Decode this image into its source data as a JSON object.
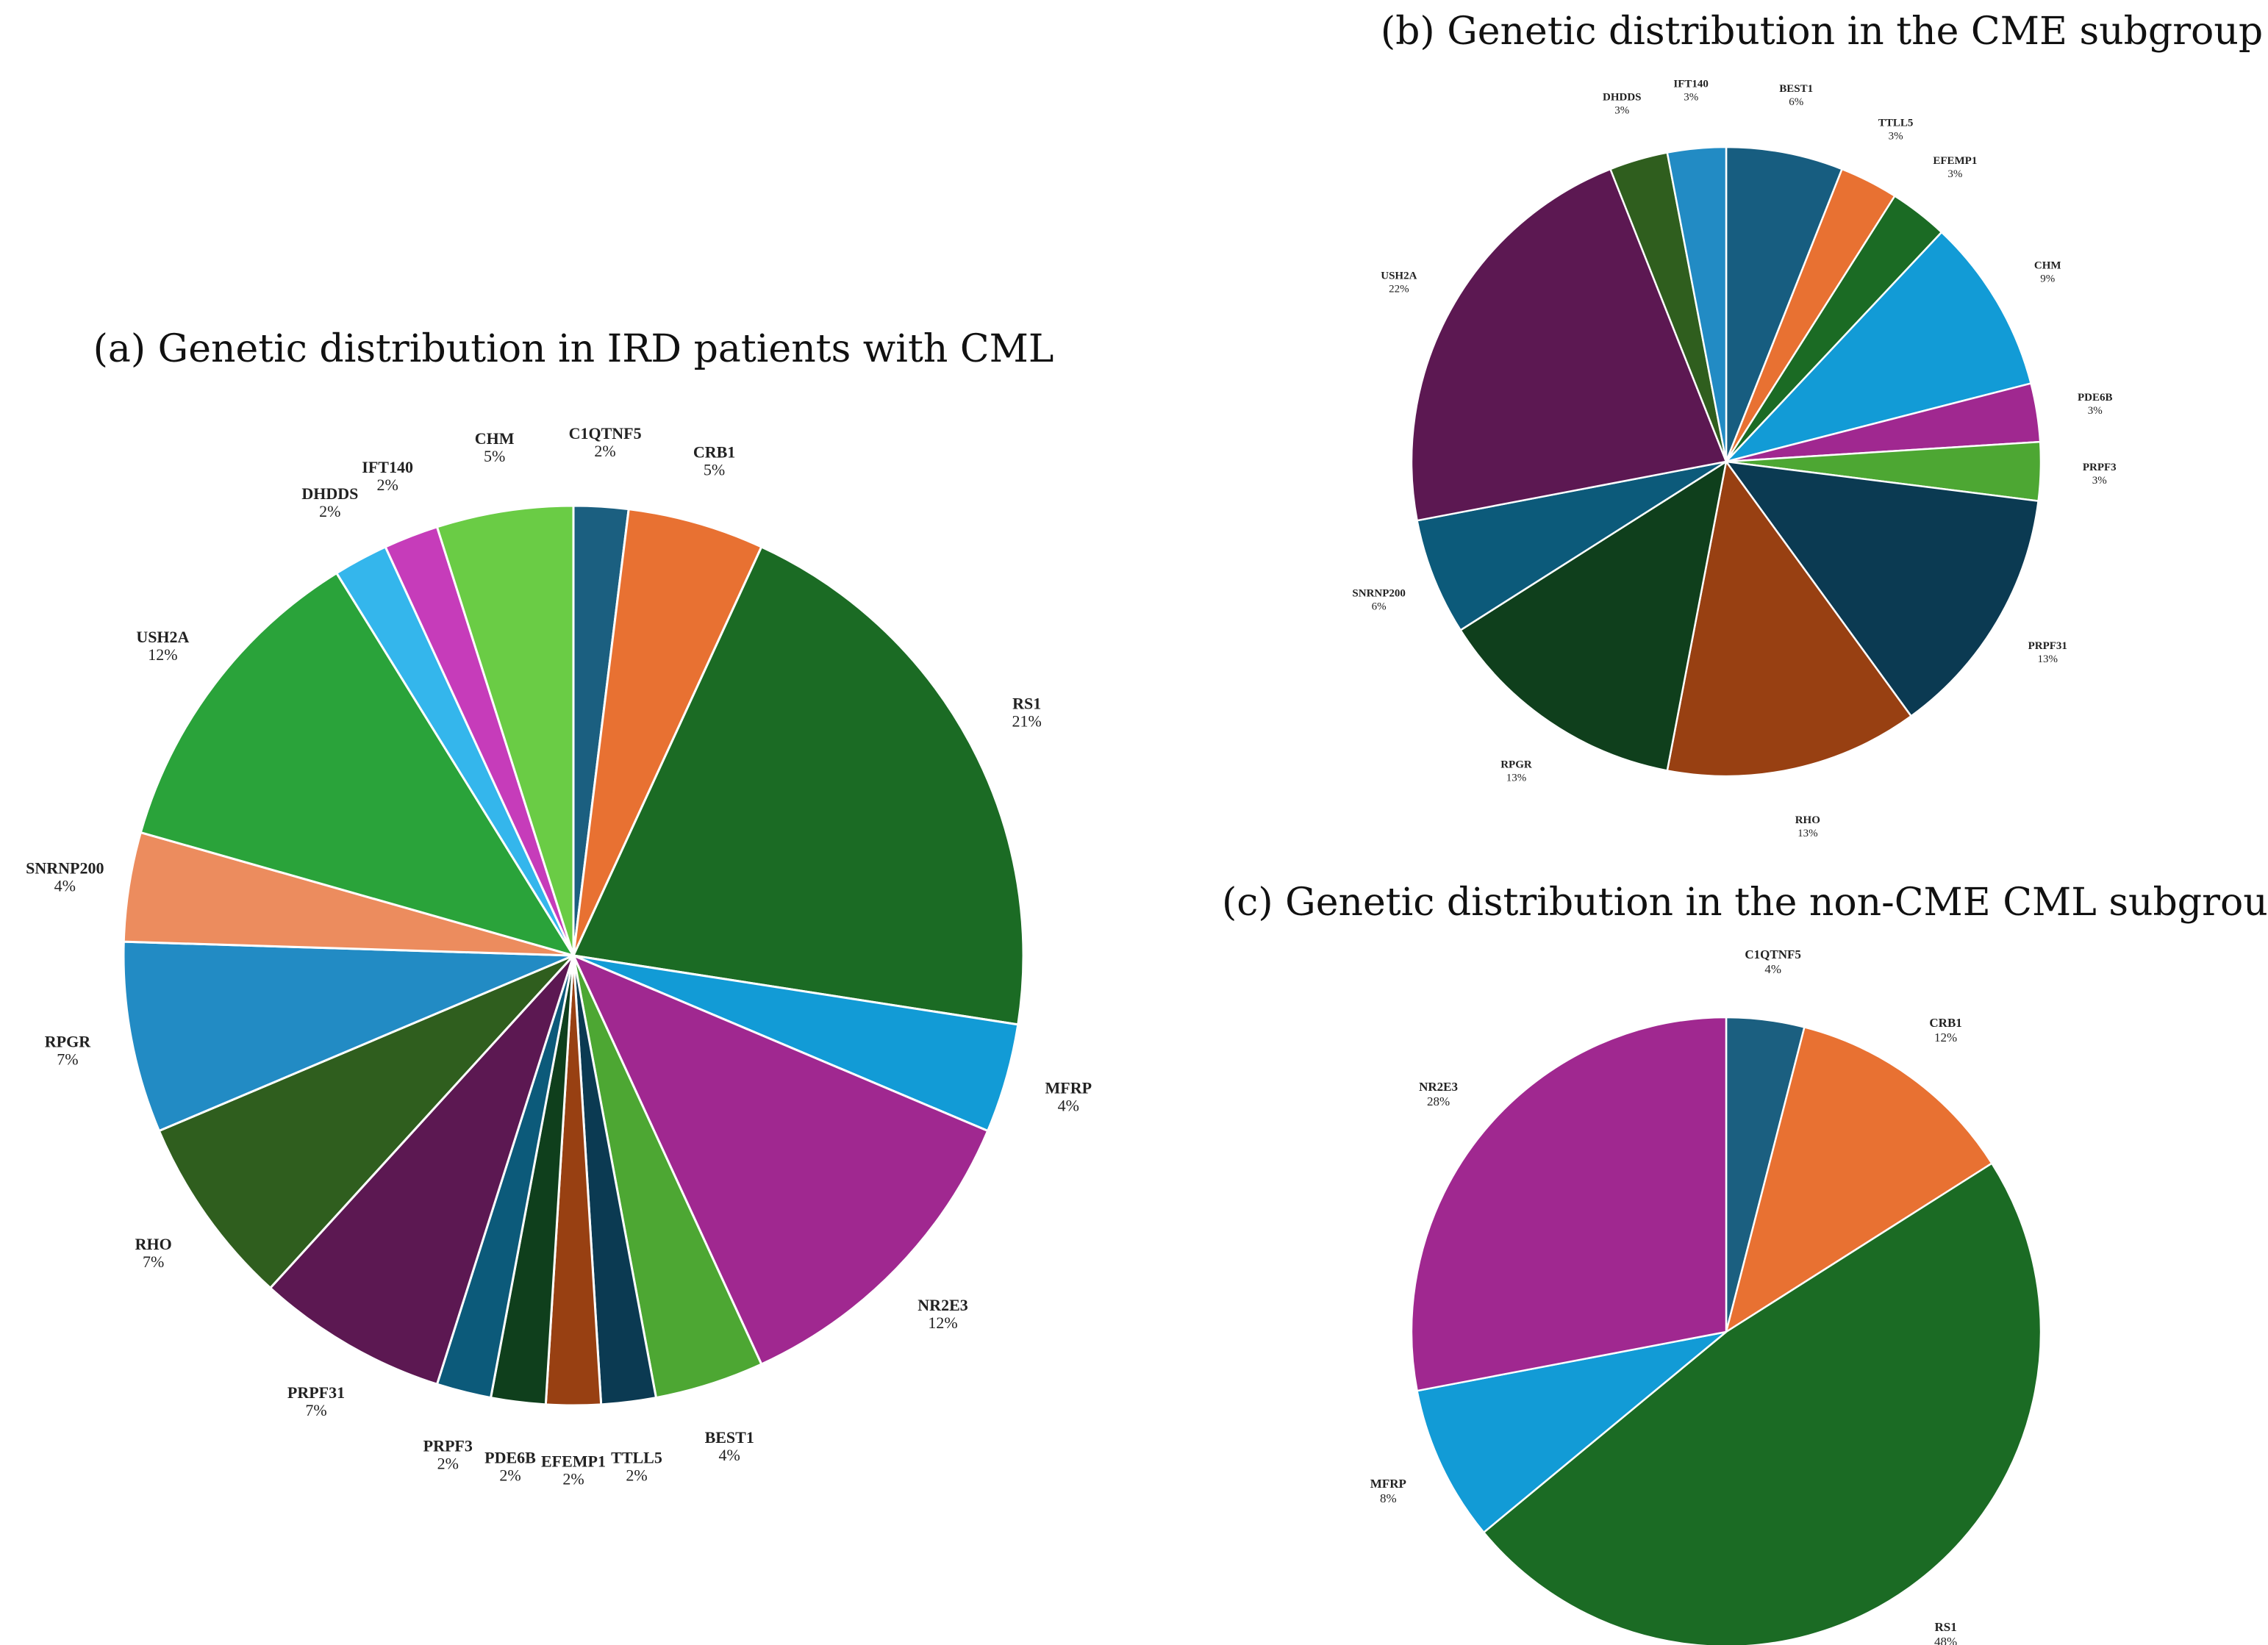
{
  "chart_data": [
    {
      "id": "a",
      "type": "pie",
      "title": "(a) Genetic distribution in IRD patients with CML",
      "start": "12 o'clock",
      "direction": "clockwise",
      "slices": [
        {
          "label": "C1QTNF5",
          "percent_label": "2%",
          "value": 2,
          "color": "#1b5f80"
        },
        {
          "label": "CRB1",
          "percent_label": "5%",
          "value": 5,
          "color": "#e87132"
        },
        {
          "label": "RS1",
          "percent_label": "21%",
          "value": 21,
          "color": "#1b6b24"
        },
        {
          "label": "MFRP",
          "percent_label": "4%",
          "value": 4,
          "color": "#129bd6"
        },
        {
          "label": "NR2E3",
          "percent_label": "12%",
          "value": 12,
          "color": "#a02890"
        },
        {
          "label": "BEST1",
          "percent_label": "4%",
          "value": 4,
          "color": "#4da733"
        },
        {
          "label": "TTLL5",
          "percent_label": "2%",
          "value": 2,
          "color": "#0b3a52"
        },
        {
          "label": "EFEMP1",
          "percent_label": "2%",
          "value": 2,
          "color": "#984012"
        },
        {
          "label": "PDE6B",
          "percent_label": "2%",
          "value": 2,
          "color": "#0f3f1c"
        },
        {
          "label": "PRPF3",
          "percent_label": "2%",
          "value": 2,
          "color": "#0c5a7a"
        },
        {
          "label": "PRPF31",
          "percent_label": "7%",
          "value": 7,
          "color": "#5c1852"
        },
        {
          "label": "RHO",
          "percent_label": "7%",
          "value": 7,
          "color": "#2f5e1e"
        },
        {
          "label": "RPGR",
          "percent_label": "7%",
          "value": 7,
          "color": "#228bc4"
        },
        {
          "label": "SNRNP200",
          "percent_label": "4%",
          "value": 4,
          "color": "#ec8c5e"
        },
        {
          "label": "USH2A",
          "percent_label": "12%",
          "value": 12,
          "color": "#2aa33a"
        },
        {
          "label": "DHDDS",
          "percent_label": "2%",
          "value": 2,
          "color": "#34b6ec"
        },
        {
          "label": "IFT140",
          "percent_label": "2%",
          "value": 2,
          "color": "#c63cba"
        },
        {
          "label": "CHM",
          "percent_label": "5%",
          "value": 5,
          "color": "#6acc45"
        }
      ]
    },
    {
      "id": "b",
      "type": "pie",
      "title": "(b) Genetic distribution in the CME subgroup",
      "start": "12 o'clock",
      "direction": "clockwise",
      "slices": [
        {
          "label": "BEST1",
          "percent_label": "6%",
          "value": 6,
          "color": "#175d80"
        },
        {
          "label": "TTLL5",
          "percent_label": "3%",
          "value": 3,
          "color": "#e87132"
        },
        {
          "label": "EFEMP1",
          "percent_label": "3%",
          "value": 3,
          "color": "#1b6b24"
        },
        {
          "label": "CHM",
          "percent_label": "9%",
          "value": 9,
          "color": "#129bd6"
        },
        {
          "label": "PDE6B",
          "percent_label": "3%",
          "value": 3,
          "color": "#a02890"
        },
        {
          "label": "PRPF3",
          "percent_label": "3%",
          "value": 3,
          "color": "#4da733"
        },
        {
          "label": "PRPF31",
          "percent_label": "13%",
          "value": 13,
          "color": "#0b3a52"
        },
        {
          "label": "RHO",
          "percent_label": "13%",
          "value": 13,
          "color": "#984012"
        },
        {
          "label": "RPGR",
          "percent_label": "13%",
          "value": 13,
          "color": "#0f3f1c"
        },
        {
          "label": "SNRNP200",
          "percent_label": "6%",
          "value": 6,
          "color": "#0c5a7a"
        },
        {
          "label": "USH2A",
          "percent_label": "22%",
          "value": 22,
          "color": "#5c1852"
        },
        {
          "label": "DHDDS",
          "percent_label": "3%",
          "value": 3,
          "color": "#2f5e1e"
        },
        {
          "label": "IFT140",
          "percent_label": "3%",
          "value": 3,
          "color": "#228bc4"
        }
      ]
    },
    {
      "id": "c",
      "type": "pie",
      "title": "(c) Genetic distribution in the non-CME CML subgroup",
      "start": "12 o'clock",
      "direction": "clockwise",
      "slices": [
        {
          "label": "C1QTNF5",
          "percent_label": "4%",
          "value": 4,
          "color": "#1b5f80"
        },
        {
          "label": "CRB1",
          "percent_label": "12%",
          "value": 12,
          "color": "#e87132"
        },
        {
          "label": "RS1",
          "percent_label": "48%",
          "value": 48,
          "color": "#1b6b24"
        },
        {
          "label": "MFRP",
          "percent_label": "8%",
          "value": 8,
          "color": "#129bd6"
        },
        {
          "label": "NR2E3",
          "percent_label": "28%",
          "value": 28,
          "color": "#a02890"
        }
      ]
    }
  ]
}
